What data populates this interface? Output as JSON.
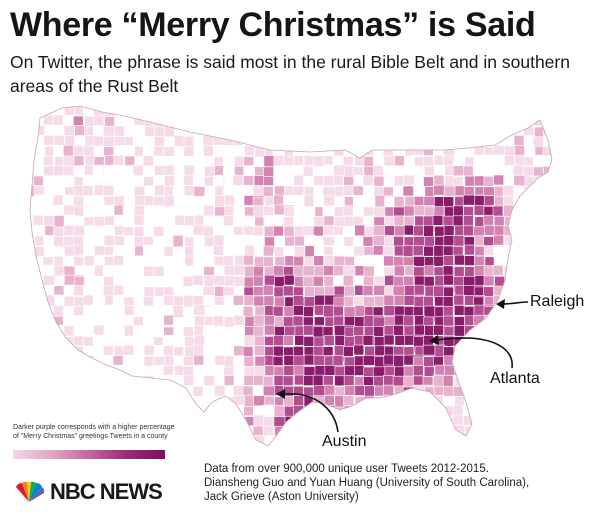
{
  "title": "Where “Merry Christmas” is Said",
  "subtitle": "On Twitter, the phrase is said most in the rural Bible Belt and in southern areas of the Rust Belt",
  "callouts": {
    "raleigh": "Raleigh",
    "atlanta": "Atlanta",
    "austin": "Austin"
  },
  "legend": {
    "text": "Darker purple corresponds with a higher percentage of \"Merry Christmas\" greetings Tweets in a county",
    "low_color": "#f3d7e4",
    "high_color": "#7c0f5f"
  },
  "source": {
    "line1": "Data from over 900,000 unique user Tweets 2012-2015.",
    "line2": "Diansheng Guo and Yuan Huang (University of South Carolina),",
    "line3": "Jack Grieve (Aston University)"
  },
  "logo": {
    "text": "NBC NEWS",
    "icon": "peacock-icon"
  },
  "colors": {
    "no_data": "#ffffff",
    "level1": "#f5dce8",
    "level2": "#e8b3cf",
    "level3": "#d283b2",
    "level4": "#b24d91",
    "level5": "#8a1c6c",
    "border": "#ffffff"
  }
}
